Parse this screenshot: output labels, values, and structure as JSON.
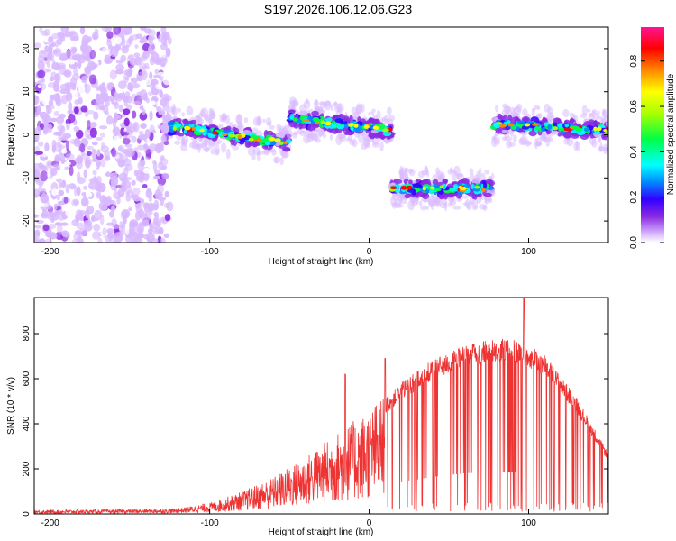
{
  "title": "S197.2026.106.12.06.G23",
  "chart_data": [
    {
      "type": "heatmap",
      "title": "S197.2026.106.12.06.G23",
      "xlabel": "Height of straight line (km)",
      "ylabel": "Frequency (Hz)",
      "xlim": [
        -210,
        150
      ],
      "ylim": [
        -25,
        25
      ],
      "xticks": [
        -200,
        -100,
        0,
        100
      ],
      "yticks": [
        -20,
        -10,
        0,
        10,
        20
      ],
      "segments": [
        {
          "x_start": -210,
          "x_end": -125,
          "freq": 0,
          "pattern": "noise"
        },
        {
          "x_start": -125,
          "x_end": -50,
          "freq_start": 2,
          "freq_end": -2,
          "pattern": "track"
        },
        {
          "x_start": -50,
          "x_end": 14,
          "freq_start": 4,
          "freq_end": 1,
          "pattern": "track"
        },
        {
          "x_start": 14,
          "x_end": 78,
          "freq": -12.5,
          "pattern": "track"
        },
        {
          "x_start": 78,
          "x_end": 150,
          "freq_start": 2.5,
          "freq_end": 1,
          "pattern": "track"
        }
      ],
      "colorbar": {
        "label": "Normalized spectral amplitude",
        "range": [
          0,
          0.95
        ],
        "ticks": [
          0.0,
          0.2,
          0.4,
          0.6,
          0.8
        ],
        "tick_labels": [
          "0.0",
          "0.2",
          "0.4",
          "0.6",
          "0.8"
        ]
      }
    },
    {
      "type": "line",
      "xlabel": "Height of straight line (km)",
      "ylabel": "SNR (10 * v/v)",
      "xlim": [
        -210,
        150
      ],
      "ylim": [
        0,
        960
      ],
      "xticks": [
        -200,
        -100,
        0,
        100
      ],
      "yticks": [
        0,
        200,
        400,
        600,
        800
      ],
      "color": "#ee3333",
      "envelope": {
        "x": [
          -210,
          -150,
          -120,
          -100,
          -80,
          -60,
          -40,
          -20,
          0,
          20,
          40,
          60,
          80,
          95,
          110,
          130,
          150
        ],
        "y": [
          15,
          18,
          22,
          45,
          90,
          150,
          230,
          330,
          420,
          560,
          660,
          720,
          750,
          740,
          680,
          500,
          260
        ]
      },
      "spikes": [
        {
          "x": -15,
          "y": 620
        },
        {
          "x": 10,
          "y": 690
        },
        {
          "x": 97,
          "y": 960
        }
      ]
    }
  ]
}
